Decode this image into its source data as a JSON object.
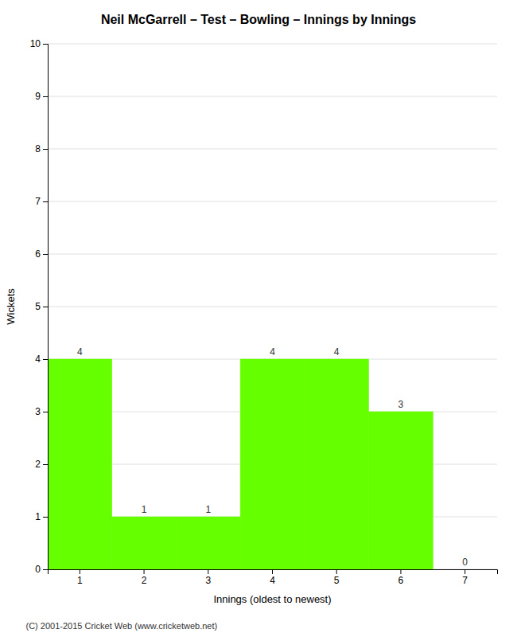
{
  "chart_data": {
    "type": "bar",
    "title": "Neil McGarrell – Test – Bowling – Innings by Innings",
    "xlabel": "Innings (oldest to newest)",
    "ylabel": "Wickets",
    "categories": [
      "1",
      "2",
      "3",
      "4",
      "5",
      "6",
      "7"
    ],
    "values": [
      4,
      1,
      1,
      4,
      4,
      3,
      0
    ],
    "color": "#66ff00",
    "ylim": [
      0,
      10
    ],
    "yticks": [
      0,
      1,
      2,
      3,
      4,
      5,
      6,
      7,
      8,
      9,
      10
    ],
    "grid": true,
    "data_labels": true,
    "footer": "(C) 2001-2015 Cricket Web (www.cricketweb.net)"
  }
}
